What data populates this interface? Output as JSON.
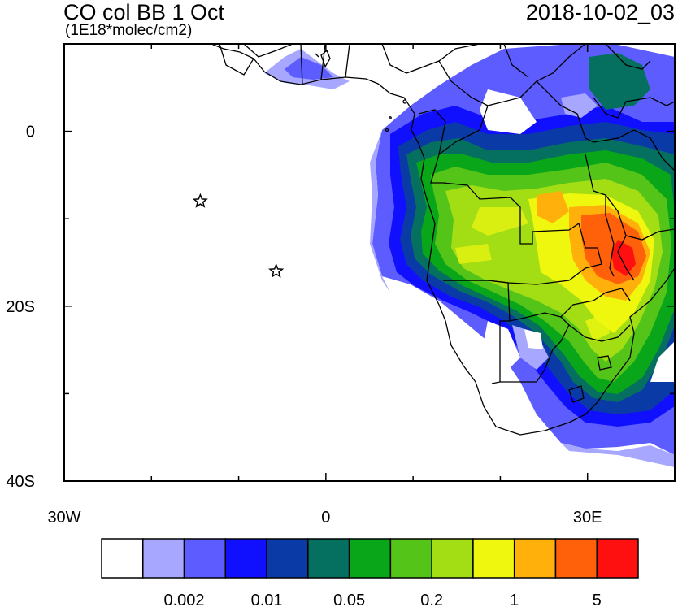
{
  "title": "CO col BB 1 Oct",
  "units": "(1E18*molec/cm2)",
  "timestamp": "2018-10-02_03",
  "axes": {
    "x_ticks": [
      {
        "value": -30,
        "label": "30W"
      },
      {
        "value": 0,
        "label": "0"
      },
      {
        "value": 30,
        "label": "30E"
      }
    ],
    "y_ticks": [
      {
        "value": 0,
        "label": "0"
      },
      {
        "value": -20,
        "label": "20S"
      },
      {
        "value": -40,
        "label": "40S"
      }
    ],
    "lon_range": [
      -30,
      40
    ],
    "lat_range": [
      -40,
      10
    ]
  },
  "markers": [
    {
      "name": "star-marker-1",
      "lon": -14.4,
      "lat": -8.0
    },
    {
      "name": "star-marker-2",
      "lon": -5.7,
      "lat": -16.0
    }
  ],
  "colorbar": {
    "colors": [
      "#ffffff",
      "#a7a7ff",
      "#5c5cff",
      "#1010ff",
      "#0a3aa5",
      "#057060",
      "#09a619",
      "#55c419",
      "#a3de15",
      "#eff70f",
      "#ffb00a",
      "#ff600a",
      "#ff1010"
    ],
    "labels": [
      "0.002",
      "0.01",
      "0.05",
      "0.2",
      "1",
      "5"
    ]
  }
}
